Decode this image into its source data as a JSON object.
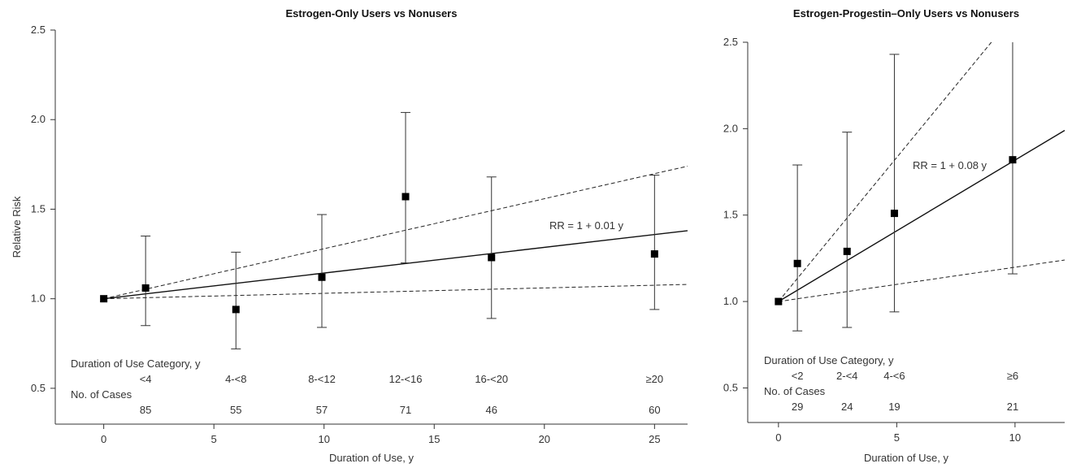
{
  "chart_data": [
    {
      "type": "scatter",
      "title": "Estrogen-Only Users vs Nonusers",
      "xlabel": "Duration of Use, y",
      "ylabel": "Relative Risk",
      "xlim": [
        -2.2,
        26.5
      ],
      "ylim": [
        0.3,
        2.5
      ],
      "xticks": [
        0,
        5,
        10,
        15,
        20,
        25
      ],
      "yticks": [
        0.5,
        1.0,
        1.5,
        2.0,
        2.5
      ],
      "ytick_labels": [
        "0.5",
        "1.0",
        "1.5",
        "2.0",
        "2.5"
      ],
      "points": [
        {
          "x": 0,
          "y": 1.0
        },
        {
          "x": 1.9,
          "y": 1.06,
          "lo": 0.85,
          "hi": 1.35
        },
        {
          "x": 6.0,
          "y": 0.94,
          "lo": 0.72,
          "hi": 1.26
        },
        {
          "x": 9.9,
          "y": 1.12,
          "lo": 0.84,
          "hi": 1.47
        },
        {
          "x": 13.7,
          "y": 1.57,
          "lo": 1.2,
          "hi": 2.04
        },
        {
          "x": 17.6,
          "y": 1.23,
          "lo": 0.89,
          "hi": 1.68
        },
        {
          "x": 25.0,
          "y": 1.25,
          "lo": 0.94,
          "hi": 1.69
        }
      ],
      "fit_line": {
        "label": "RR = 1 + 0.01 y",
        "x_end": 26.5,
        "y_end": 1.38
      },
      "ci_lines": [
        {
          "x_end": 26.5,
          "y_end": 1.74
        },
        {
          "x_end": 26.5,
          "y_end": 1.08
        }
      ],
      "category_header": "Duration of Use Category, y",
      "categories": [
        {
          "label": "<4",
          "x": 1.9
        },
        {
          "label": "4-<8",
          "x": 6.0
        },
        {
          "label": "8-<12",
          "x": 9.9
        },
        {
          "label": "12-<16",
          "x": 13.7
        },
        {
          "label": "16-<20",
          "x": 17.6
        },
        {
          "label": "≥20",
          "x": 25.0
        }
      ],
      "cases_header": "No. of Cases",
      "cases": [
        "85",
        "55",
        "57",
        "71",
        "46",
        "60"
      ]
    },
    {
      "type": "scatter",
      "title": "Estrogen-Progestin–Only Users vs Nonusers",
      "xlabel": "Duration of Use, y",
      "ylabel": "",
      "xlim": [
        -1.3,
        12.1
      ],
      "ylim": [
        0.3,
        2.5
      ],
      "xticks": [
        0,
        5,
        10
      ],
      "yticks": [
        0.5,
        1.0,
        1.5,
        2.0,
        2.5
      ],
      "ytick_labels": [
        "0.5",
        "1.0",
        "1.5",
        "2.0",
        "2.5"
      ],
      "points": [
        {
          "x": 0,
          "y": 1.0
        },
        {
          "x": 0.8,
          "y": 1.22,
          "lo": 0.83,
          "hi": 1.79
        },
        {
          "x": 2.9,
          "y": 1.29,
          "lo": 0.85,
          "hi": 1.98
        },
        {
          "x": 4.9,
          "y": 1.51,
          "lo": 0.94,
          "hi": 2.43
        },
        {
          "x": 9.9,
          "y": 1.82,
          "lo": 1.16,
          "hi": 2.5
        }
      ],
      "fit_line": {
        "label": "RR = 1 + 0.08 y",
        "x_end": 12.1,
        "y_end": 1.99
      },
      "ci_lines": [
        {
          "x_end": 9.0,
          "y_end": 2.5
        },
        {
          "x_end": 12.1,
          "y_end": 1.24
        }
      ],
      "category_header": "Duration of Use Category, y",
      "categories": [
        {
          "label": "<2",
          "x": 0.8
        },
        {
          "label": "2-<4",
          "x": 2.9
        },
        {
          "label": "4-<6",
          "x": 4.9
        },
        {
          "label": "≥6",
          "x": 9.9
        }
      ],
      "cases_header": "No. of Cases",
      "cases": [
        "29",
        "24",
        "19",
        "21"
      ]
    }
  ]
}
